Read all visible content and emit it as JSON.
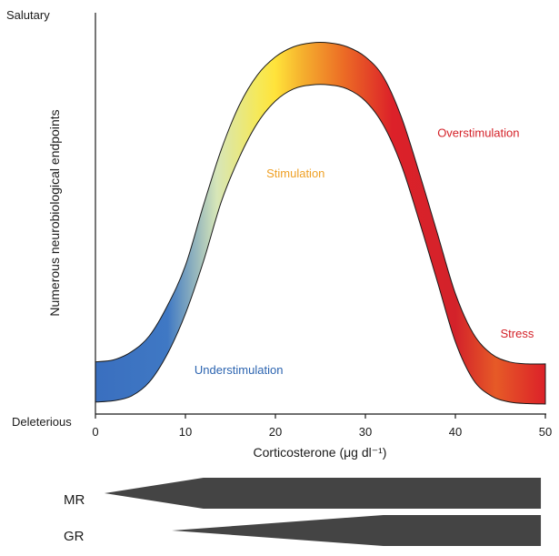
{
  "chart_data": {
    "type": "area",
    "title": "",
    "xlabel": "Corticosterone (μg dl⁻¹)",
    "ylabel": "Numerous neurobiological endpoints",
    "y_top_label": "Salutary",
    "y_bottom_label": "Deleterious",
    "xlim": [
      0,
      50
    ],
    "ylim": [
      0,
      100
    ],
    "x_ticks": [
      "0",
      "10",
      "20",
      "30",
      "40",
      "50"
    ],
    "x_tick_values": [
      0,
      10,
      20,
      30,
      40,
      50
    ],
    "grid": false,
    "series": [
      {
        "upper": [
          [
            0,
            13
          ],
          [
            2,
            13.5
          ],
          [
            4,
            15.5
          ],
          [
            6,
            19.5
          ],
          [
            8,
            27
          ],
          [
            10,
            37
          ],
          [
            12,
            52
          ],
          [
            14,
            66
          ],
          [
            16,
            77
          ],
          [
            18,
            84.5
          ],
          [
            20,
            89
          ],
          [
            22,
            91.5
          ],
          [
            24,
            92.5
          ],
          [
            26,
            92.5
          ],
          [
            28,
            91.5
          ],
          [
            30,
            89
          ],
          [
            32,
            84
          ],
          [
            34,
            74
          ],
          [
            36,
            60
          ],
          [
            38,
            45
          ],
          [
            40,
            30
          ],
          [
            42,
            20
          ],
          [
            44,
            15
          ],
          [
            46,
            13
          ],
          [
            48,
            12.5
          ],
          [
            50,
            12.5
          ]
        ],
        "lower": [
          [
            0,
            3
          ],
          [
            2,
            3.3
          ],
          [
            4,
            4.5
          ],
          [
            6,
            8
          ],
          [
            8,
            15
          ],
          [
            10,
            25
          ],
          [
            12,
            38
          ],
          [
            14,
            53
          ],
          [
            16,
            64
          ],
          [
            18,
            72.5
          ],
          [
            20,
            78
          ],
          [
            22,
            81
          ],
          [
            24,
            82
          ],
          [
            26,
            82
          ],
          [
            28,
            81
          ],
          [
            30,
            78
          ],
          [
            32,
            72
          ],
          [
            34,
            62
          ],
          [
            36,
            48
          ],
          [
            38,
            33
          ],
          [
            40,
            18
          ],
          [
            42,
            8.5
          ],
          [
            44,
            4.5
          ],
          [
            46,
            3
          ],
          [
            48,
            2.6
          ],
          [
            50,
            2.5
          ]
        ]
      }
    ],
    "gradient_colors": [
      "#3a6fbf",
      "#3f78c4",
      "#d7e6b8",
      "#f5e95a",
      "#ffe33a",
      "#f5b02e",
      "#ec6d25",
      "#dc2129",
      "#d3222a",
      "#e65a27",
      "#dc2129"
    ],
    "annotations": [
      {
        "text": "Understimulation",
        "x": 11,
        "y": 10,
        "color": "#2c64b0"
      },
      {
        "text": "Stimulation",
        "x": 19,
        "y": 59,
        "color": "#efa025"
      },
      {
        "text": "Overstimulation",
        "x": 38,
        "y": 69,
        "color": "#d42128"
      },
      {
        "text": "Stress",
        "x": 45,
        "y": 19,
        "color": "#d42128"
      }
    ]
  },
  "receptor_bars": [
    {
      "label": "MR",
      "start_x": 1,
      "full_x": 12,
      "end_x": 49.5,
      "color": "#444444"
    },
    {
      "label": "GR",
      "start_x": 8.5,
      "full_x": 32,
      "end_x": 49.5,
      "color": "#444444"
    }
  ]
}
